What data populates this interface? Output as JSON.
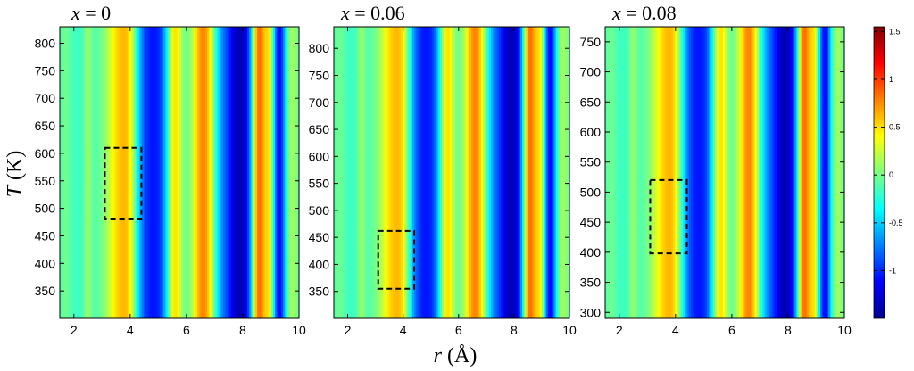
{
  "chart_data": [
    {
      "type": "heatmap",
      "title": "x = 0",
      "title_var": "x",
      "title_rest": " = 0",
      "ylabel": "T (K)",
      "ylabel_var": "T",
      "ylabel_unit": " (K)",
      "xlim": [
        1.5,
        10
      ],
      "ylim": [
        300,
        830
      ],
      "xticks": [
        2,
        4,
        6,
        8,
        10
      ],
      "yticks": [
        350,
        400,
        450,
        500,
        550,
        600,
        650,
        700,
        750,
        800
      ],
      "highlight_box": {
        "r_range": [
          3.1,
          4.4
        ],
        "T_range": [
          480,
          610
        ]
      },
      "colormap": "jet"
    },
    {
      "type": "heatmap",
      "title": "x = 0.06",
      "title_var": "x",
      "title_rest": " = 0.06",
      "xlabel": "r (Å)",
      "xlabel_var": "r",
      "xlabel_unit": " (Å)",
      "xlim": [
        1.5,
        10
      ],
      "ylim": [
        300,
        840
      ],
      "xticks": [
        2,
        4,
        6,
        8,
        10
      ],
      "yticks": [
        350,
        400,
        450,
        500,
        550,
        600,
        650,
        700,
        750,
        800
      ],
      "highlight_box": {
        "r_range": [
          3.1,
          4.4
        ],
        "T_range": [
          355,
          462
        ]
      },
      "colormap": "jet"
    },
    {
      "type": "heatmap",
      "title": "x = 0.08",
      "title_var": "x",
      "title_rest": " = 0.08",
      "xlim": [
        1.5,
        10
      ],
      "ylim": [
        290,
        775
      ],
      "xticks": [
        2,
        4,
        6,
        8,
        10
      ],
      "yticks": [
        300,
        350,
        400,
        450,
        500,
        550,
        600,
        650,
        700,
        750
      ],
      "highlight_box": {
        "r_range": [
          3.1,
          4.4
        ],
        "T_range": [
          398,
          520
        ]
      },
      "colormap": "jet"
    },
    {
      "type": "colorbar",
      "range": [
        -1.5,
        1.55
      ],
      "ticks": [
        1.5,
        1,
        0.5,
        0,
        -0.5,
        -1
      ],
      "tick_labels": [
        "1.5",
        "1",
        "0.5",
        "0",
        "-0.5",
        "-1"
      ],
      "colormap": "jet"
    }
  ]
}
